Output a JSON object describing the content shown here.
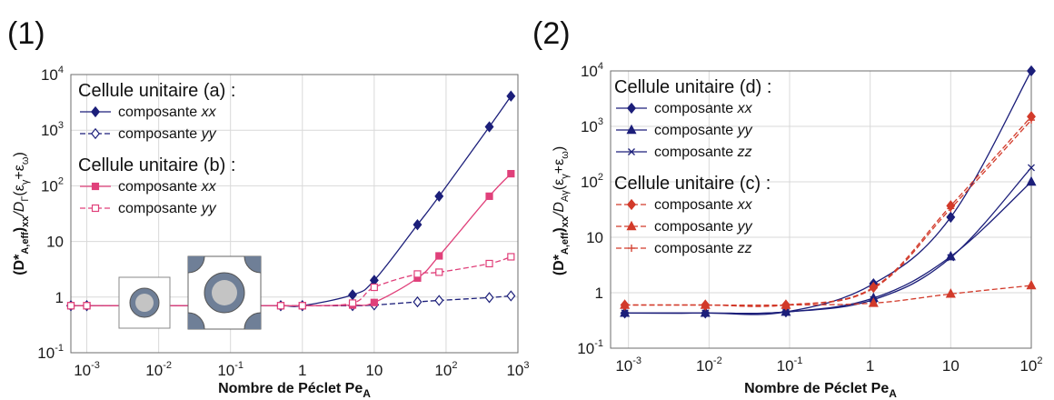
{
  "chart_data": [
    {
      "type": "line",
      "panel_label": "(1)",
      "xlabel": {
        "main": "Nombre de Péclet Pe",
        "sub": "A"
      },
      "ylabel": {
        "main": "(D*",
        "sub1": "A,eff",
        "mid": ")",
        "sub2": "xx",
        "rest": "/D",
        "sub3": "Γ",
        "tail": "(ε",
        "sub4": "γ",
        "plus": "+ε",
        "sub5": "ω",
        "end": ")"
      },
      "x_scale": "log",
      "y_scale": "log",
      "xlim": [
        0.0006,
        1000
      ],
      "ylim": [
        0.1,
        10000
      ],
      "x_ticks": [
        {
          "base": "10",
          "exp": "-3",
          "v": 0.001
        },
        {
          "base": "10",
          "exp": "-2",
          "v": 0.01
        },
        {
          "base": "10",
          "exp": "-1",
          "v": 0.1
        },
        {
          "base": "1",
          "exp": "",
          "v": 1
        },
        {
          "base": "10",
          "exp": "",
          "v": 10
        },
        {
          "base": "10",
          "exp": "2",
          "v": 100
        },
        {
          "base": "10",
          "exp": "3",
          "v": 1000
        }
      ],
      "y_ticks": [
        {
          "base": "10",
          "exp": "-1",
          "v": 0.1
        },
        {
          "base": "1",
          "exp": "",
          "v": 1
        },
        {
          "base": "10",
          "exp": "",
          "v": 10
        },
        {
          "base": "10",
          "exp": "2",
          "v": 100
        },
        {
          "base": "10",
          "exp": "3",
          "v": 1000
        },
        {
          "base": "10",
          "exp": "4",
          "v": 10000
        }
      ],
      "legend_groups": [
        {
          "title": "Cellule unitaire (a) :",
          "entries": [
            "composante ",
            "composante "
          ],
          "entries_it": [
            "xx",
            "yy"
          ]
        },
        {
          "title": "Cellule unitaire (b) :",
          "entries": [
            "composante ",
            "composante "
          ],
          "entries_it": [
            "xx",
            "yy"
          ]
        }
      ],
      "series": [
        {
          "color": "#1c1f7a",
          "dash": false,
          "marker": "diamond-filled",
          "x": [
            0.0006,
            0.001,
            0.004,
            0.01,
            0.04,
            0.1,
            0.5,
            1,
            5,
            10,
            40,
            80,
            400,
            800
          ],
          "y": [
            0.7,
            0.7,
            0.7,
            0.7,
            0.7,
            0.7,
            0.7,
            0.7,
            1.1,
            2,
            20,
            65,
            1150,
            4100
          ]
        },
        {
          "color": "#1c1f7a",
          "dash": true,
          "marker": "diamond-open",
          "x": [
            0.0006,
            0.001,
            0.004,
            0.01,
            0.04,
            0.1,
            0.5,
            1,
            5,
            10,
            40,
            80,
            400,
            800
          ],
          "y": [
            0.7,
            0.7,
            0.7,
            0.7,
            0.7,
            0.7,
            0.7,
            0.7,
            0.7,
            0.72,
            0.82,
            0.87,
            0.98,
            1.05
          ]
        },
        {
          "color": "#e0407a",
          "dash": false,
          "marker": "square-filled",
          "x": [
            0.0006,
            0.001,
            0.004,
            0.01,
            0.04,
            0.1,
            0.5,
            1,
            5,
            10,
            40,
            80,
            400,
            800
          ],
          "y": [
            0.7,
            0.7,
            0.7,
            0.7,
            0.7,
            0.7,
            0.7,
            0.7,
            0.72,
            0.8,
            2.2,
            5.5,
            65,
            165
          ]
        },
        {
          "color": "#e0407a",
          "dash": true,
          "marker": "square-open",
          "x": [
            0.0006,
            0.001,
            0.004,
            0.01,
            0.04,
            0.1,
            0.5,
            1,
            5,
            10,
            40,
            80,
            400,
            800
          ],
          "y": [
            0.7,
            0.7,
            0.7,
            0.7,
            0.7,
            0.7,
            0.7,
            0.7,
            0.78,
            1.5,
            2.6,
            2.8,
            4,
            5.3
          ]
        }
      ]
    },
    {
      "type": "line",
      "panel_label": "(2)",
      "xlabel": {
        "main": "Nombre de Péclet Pe",
        "sub": "A"
      },
      "ylabel": {
        "main": "(D*",
        "sub1": "A,eff",
        "mid": ")",
        "sub2": "xx",
        "rest": "/D",
        "sub3": "Aγ",
        "tail": "(ε",
        "sub4": "γ",
        "plus": "+ε",
        "sub5": "ω",
        "end": ")"
      },
      "x_scale": "log",
      "y_scale": "log",
      "xlim": [
        0.0006,
        100
      ],
      "ylim": [
        0.1,
        10000
      ],
      "x_ticks": [
        {
          "base": "10",
          "exp": "-3",
          "v": 0.001
        },
        {
          "base": "10",
          "exp": "-2",
          "v": 0.01
        },
        {
          "base": "10",
          "exp": "-1",
          "v": 0.1
        },
        {
          "base": "1",
          "exp": "",
          "v": 1
        },
        {
          "base": "10",
          "exp": "",
          "v": 10
        },
        {
          "base": "10",
          "exp": "2",
          "v": 100
        }
      ],
      "y_ticks": [
        {
          "base": "10",
          "exp": "-1",
          "v": 0.1
        },
        {
          "base": "1",
          "exp": "",
          "v": 1
        },
        {
          "base": "10",
          "exp": "",
          "v": 10
        },
        {
          "base": "10",
          "exp": "2",
          "v": 100
        },
        {
          "base": "10",
          "exp": "3",
          "v": 1000
        },
        {
          "base": "10",
          "exp": "4",
          "v": 10000
        }
      ],
      "legend_groups": [
        {
          "title": "Cellule unitaire (d) :",
          "entries": [
            "composante ",
            "composante ",
            "composante "
          ],
          "entries_it": [
            "xx",
            "yy",
            "zz"
          ]
        },
        {
          "title": "Cellule unitaire (c) :",
          "entries": [
            "composante ",
            "composante ",
            "composante "
          ],
          "entries_it": [
            "xx",
            "yy",
            "zz"
          ]
        }
      ],
      "series": [
        {
          "color": "#1c1f7a",
          "dash": false,
          "marker": "diamond-filled",
          "x": [
            0.0009,
            0.009,
            0.09,
            1.1,
            10,
            100
          ],
          "y": [
            0.43,
            0.43,
            0.45,
            1.45,
            23,
            10000
          ]
        },
        {
          "color": "#1c1f7a",
          "dash": false,
          "marker": "triangle-filled",
          "x": [
            0.0009,
            0.009,
            0.09,
            1.1,
            10,
            100
          ],
          "y": [
            0.43,
            0.43,
            0.45,
            0.8,
            4.5,
            100
          ]
        },
        {
          "color": "#1c1f7a",
          "dash": false,
          "marker": "cross",
          "x": [
            0.0009,
            0.009,
            0.09,
            1.1,
            10,
            100
          ],
          "y": [
            0.43,
            0.43,
            0.45,
            0.75,
            4.3,
            180
          ]
        },
        {
          "color": "#d23a2a",
          "dash": true,
          "marker": "diamond-filled",
          "x": [
            0.0009,
            0.009,
            0.09,
            1.1,
            10,
            100
          ],
          "y": [
            0.6,
            0.6,
            0.6,
            1.25,
            37,
            1500
          ]
        },
        {
          "color": "#d23a2a",
          "dash": true,
          "marker": "triangle-filled",
          "x": [
            0.0009,
            0.009,
            0.09,
            1.1,
            10,
            100
          ],
          "y": [
            0.6,
            0.6,
            0.6,
            0.65,
            0.95,
            1.35
          ]
        },
        {
          "color": "#d23a2a",
          "dash": true,
          "marker": "plus",
          "x": [
            0.0009,
            0.009,
            0.09,
            1.1,
            10,
            100
          ],
          "y": [
            0.6,
            0.6,
            0.6,
            1.2,
            33,
            1300
          ]
        }
      ]
    }
  ]
}
